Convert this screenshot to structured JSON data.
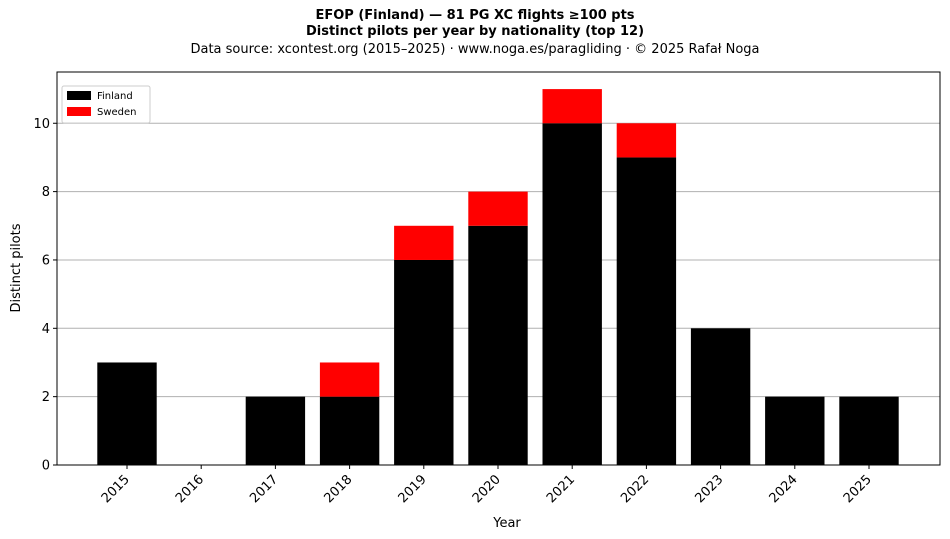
{
  "chart_data": {
    "type": "bar",
    "stacked": true,
    "title": "EFOP (Finland)  —  81 PG XC flights ≥100 pts",
    "subtitle": "Distinct pilots per year by nationality (top 12)",
    "source": "Data source: xcontest.org (2015–2025)  ·  www.noga.es/paragliding  ·  © 2025 Rafał Noga",
    "xlabel": "Year",
    "ylabel": "Distinct pilots",
    "categories": [
      "2015",
      "2016",
      "2017",
      "2018",
      "2019",
      "2020",
      "2021",
      "2022",
      "2023",
      "2024",
      "2025"
    ],
    "series": [
      {
        "name": "Finland",
        "color": "#000000",
        "values": [
          3,
          0,
          2,
          2,
          6,
          7,
          10,
          9,
          4,
          2,
          2
        ]
      },
      {
        "name": "Sweden",
        "color": "#ff0000",
        "values": [
          0,
          0,
          0,
          1,
          1,
          1,
          1,
          1,
          0,
          0,
          0
        ]
      }
    ],
    "ylim": [
      0,
      11.5
    ],
    "yticks": [
      0,
      2,
      4,
      6,
      8,
      10
    ],
    "grid": "y",
    "legend": "top-left"
  }
}
